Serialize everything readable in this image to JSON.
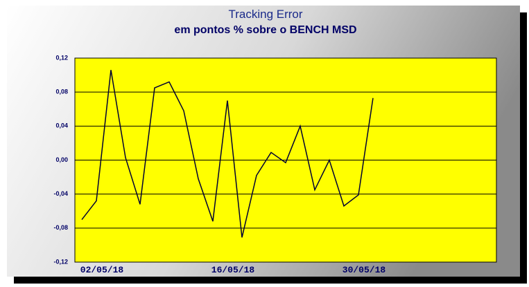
{
  "chart_data": {
    "type": "line",
    "title": "Tracking Error",
    "subtitle": "em pontos % sobre o BENCH MSD",
    "categories": [
      null,
      "02/05/18",
      null,
      null,
      null,
      null,
      null,
      null,
      null,
      null,
      "16/05/18",
      null,
      null,
      null,
      null,
      null,
      null,
      null,
      null,
      "30/05/18",
      null
    ],
    "series": [
      {
        "color": "#000033",
        "values": [
          -0.07,
          -0.048,
          0.106,
          0.003,
          -0.052,
          0.085,
          0.092,
          0.058,
          -0.022,
          -0.072,
          0.07,
          -0.091,
          -0.018,
          0.009,
          -0.003,
          0.04,
          -0.035,
          0.0,
          -0.054,
          -0.041,
          0.073
        ]
      }
    ],
    "ylim": [
      -0.12,
      0.12
    ],
    "yticks": [
      {
        "value": -0.12,
        "label": "-0,12"
      },
      {
        "value": -0.08,
        "label": "-0,08"
      },
      {
        "value": -0.04,
        "label": "-0,04"
      },
      {
        "value": 0,
        "label": "0,00"
      },
      {
        "value": 0.04,
        "label": "0,04"
      },
      {
        "value": 0.08,
        "label": "0,08"
      },
      {
        "value": 0.12,
        "label": "0,12"
      }
    ],
    "grid": true,
    "background": "#ffff00"
  }
}
